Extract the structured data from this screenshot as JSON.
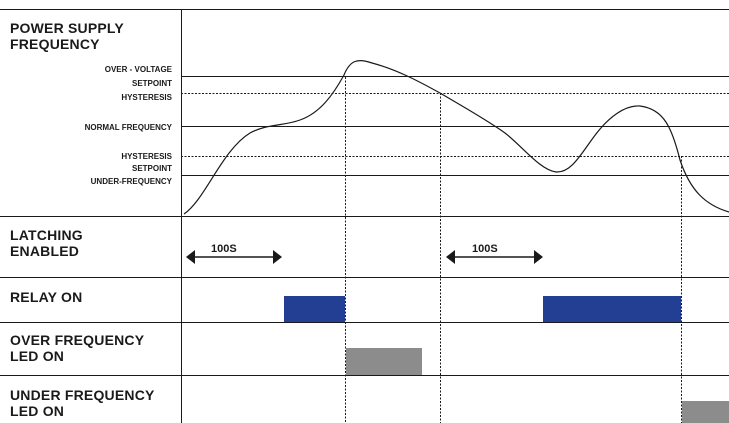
{
  "section_titles": {
    "frequency_line1": "POWER SUPPLY",
    "frequency_line2": "FREQUENCY",
    "latching_line1": "LATCHING",
    "latching_line2": "ENABLED",
    "relay": "RELAY ON",
    "over_led_line1": "OVER FREQUENCY",
    "over_led_line2": "LED ON",
    "under_led_line1": "UNDER FREQUENCY",
    "under_led_line2": "LED ON"
  },
  "level_labels": {
    "over_voltage": "OVER - VOLTAGE",
    "setpoint_upper": "SETPOINT",
    "hysteresis_upper": "HYSTERESIS",
    "normal": "NORMAL FREQUENCY",
    "hysteresis_lower": "HYSTERESIS",
    "setpoint_lower": "SETPOINT",
    "under_frequency": "UNDER-FREQUENCY"
  },
  "delays": {
    "first": "100S",
    "second": "100S"
  },
  "colors": {
    "relay_bar": "#233f94",
    "led_bar": "#8c8c8c",
    "line": "#1a1a1a"
  }
}
